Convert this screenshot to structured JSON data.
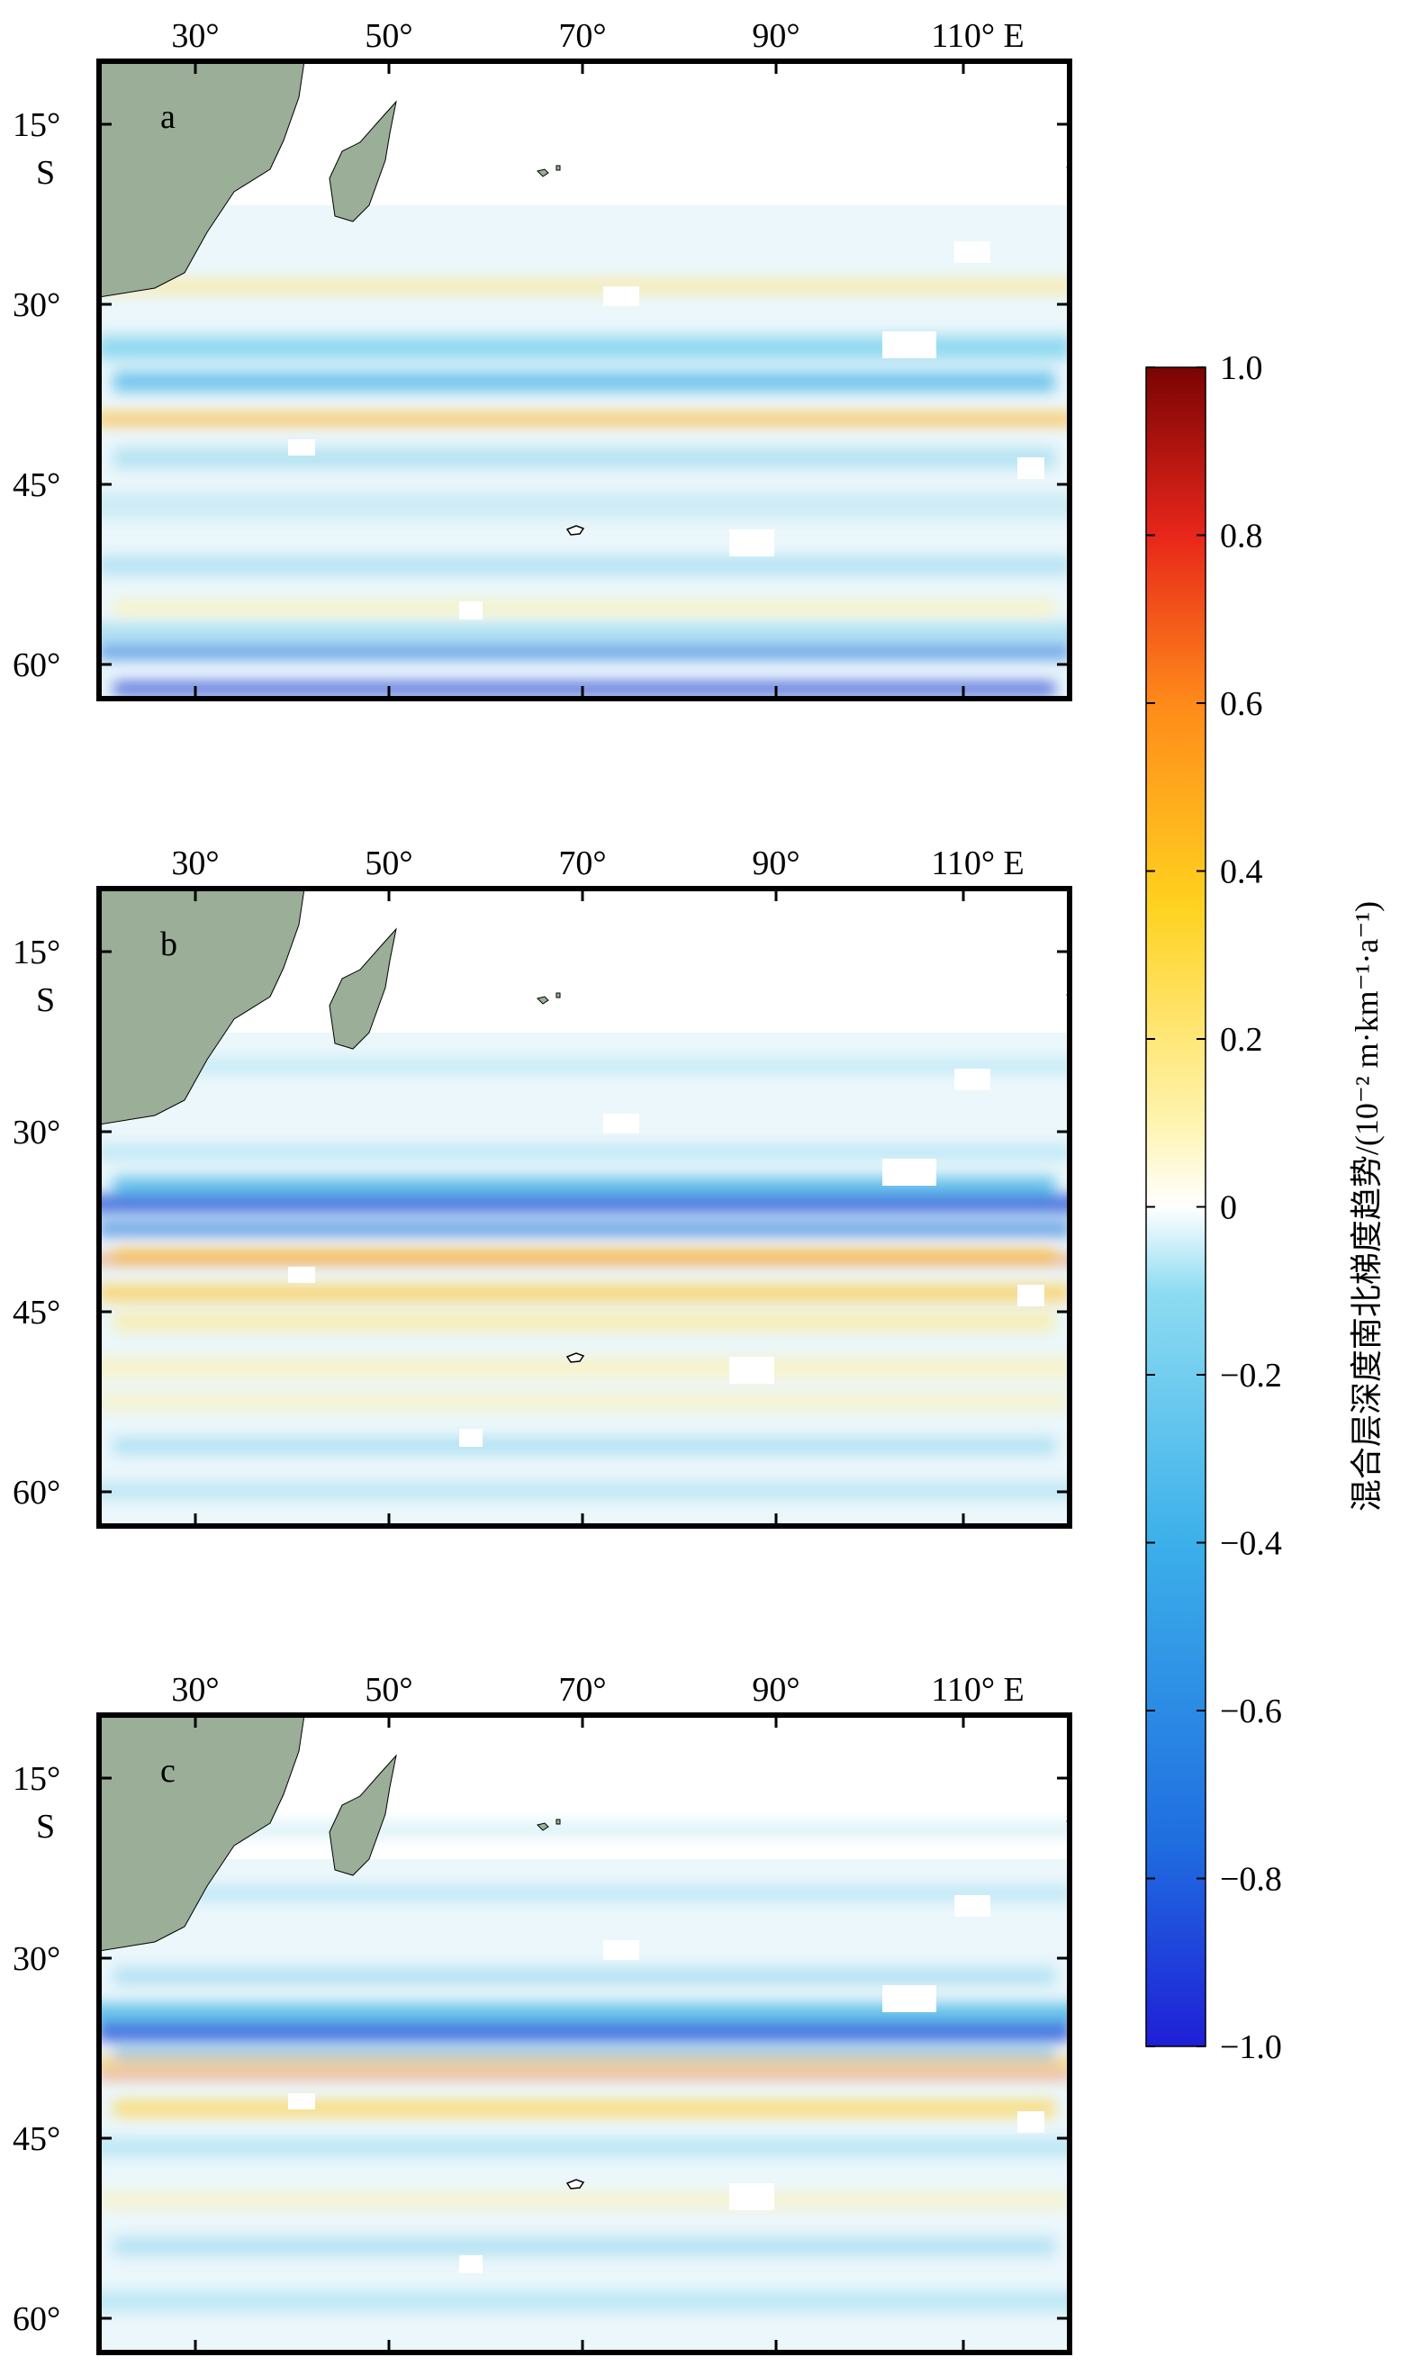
{
  "figure": {
    "panels": [
      {
        "label": "a",
        "x_tick_labels": [
          "30°",
          "50°",
          "70°",
          "90°",
          "110° E"
        ],
        "y_tick_labels": [
          "15°",
          "30°",
          "45°",
          "60°"
        ],
        "y_hemisphere": "S"
      },
      {
        "label": "b",
        "x_tick_labels": [
          "30°",
          "50°",
          "70°",
          "90°",
          "110° E"
        ],
        "y_tick_labels": [
          "15°",
          "30°",
          "45°",
          "60°"
        ],
        "y_hemisphere": "S"
      },
      {
        "label": "c",
        "x_tick_labels": [
          "30°",
          "50°",
          "70°",
          "90°",
          "110° E"
        ],
        "y_tick_labels": [
          "15°",
          "30°",
          "45°",
          "60°"
        ],
        "y_hemisphere": "S"
      }
    ],
    "colorbar": {
      "title": "混合层深度南北梯度趋势/(10⁻² m·km⁻¹·a⁻¹)",
      "tick_labels": [
        "1.0",
        "0.8",
        "0.6",
        "0.4",
        "0.2",
        "0",
        "−0.2",
        "−0.4",
        "−0.6",
        "−0.8",
        "−1.0"
      ],
      "colormap": "blue-cyan-white-yellow-red",
      "stops": [
        "#1f1fd6",
        "#1f6de0",
        "#3cb0ea",
        "#8edcf2",
        "#ffffff",
        "#fff0a0",
        "#ffd21f",
        "#ff8a1a",
        "#e8261a",
        "#8a0808"
      ]
    },
    "land_color": "#9aae98"
  }
}
